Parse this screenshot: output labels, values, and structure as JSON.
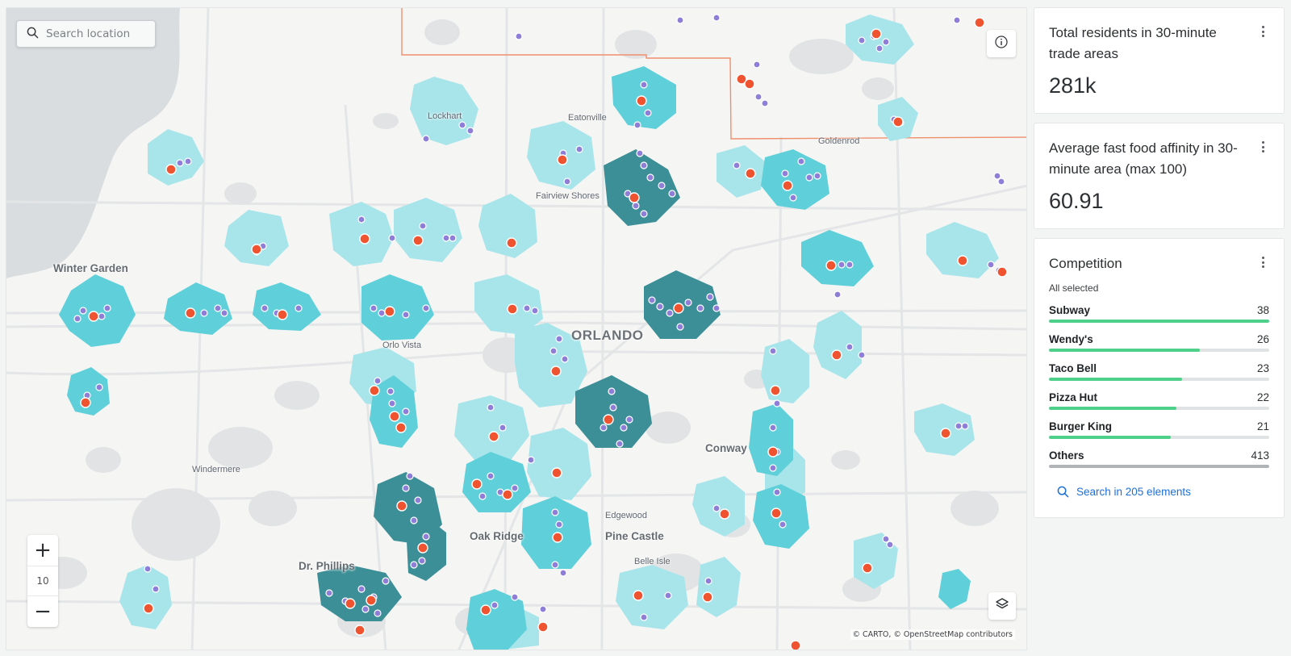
{
  "map": {
    "search": {
      "placeholder": "Search location"
    },
    "zoom": {
      "in_label": "+",
      "level": "10",
      "out_label": "−"
    },
    "attribution": "© CARTO, © OpenStreetMap contributors",
    "labels": {
      "winter_garden": "Winter Garden",
      "orlo_vista": "Orlo Vista",
      "orlando": "ORLANDO",
      "conway": "Conway",
      "windermere": "Windermere",
      "oak_ridge": "Oak Ridge",
      "pine_castle": "Pine Castle",
      "edgewood": "Edgewood",
      "dr_phillips": "Dr. Phillips",
      "belle_isle": "Belle Isle",
      "eatonville": "Eatonville",
      "fairview_shores": "Fairview Shores",
      "goldenrod": "Goldenrod",
      "lockhart": "Lockhart"
    },
    "colors": {
      "water": "#dadddf",
      "tradeArea": "#5fd0d9",
      "tradeAreaDark": "#3c8f96",
      "tradeAreaLight": "#a8e5ea",
      "storeDot": "#f0532f",
      "competitorDot": "#8f7ed8",
      "boundary": "#ef8f6c"
    },
    "icons": [
      "search-icon",
      "info-icon",
      "layers-icon"
    ]
  },
  "widgets": {
    "residents": {
      "title": "Total residents in 30-minute trade areas",
      "value": "281k"
    },
    "affinity": {
      "title": "Average fast food affinity in 30-minute area (max 100)",
      "value": "60.91"
    },
    "competition": {
      "title": "Competition",
      "subtitle": "All selected",
      "items": [
        {
          "name": "Subway",
          "count": "38",
          "fraction": 1.0
        },
        {
          "name": "Wendy's",
          "count": "26",
          "fraction": 0.684
        },
        {
          "name": "Taco Bell",
          "count": "23",
          "fraction": 0.605
        },
        {
          "name": "Pizza Hut",
          "count": "22",
          "fraction": 0.579
        },
        {
          "name": "Burger King",
          "count": "21",
          "fraction": 0.553
        },
        {
          "name": "Others",
          "count": "413",
          "fraction": 1.0
        }
      ],
      "search_label": "Search in 205 elements"
    }
  }
}
